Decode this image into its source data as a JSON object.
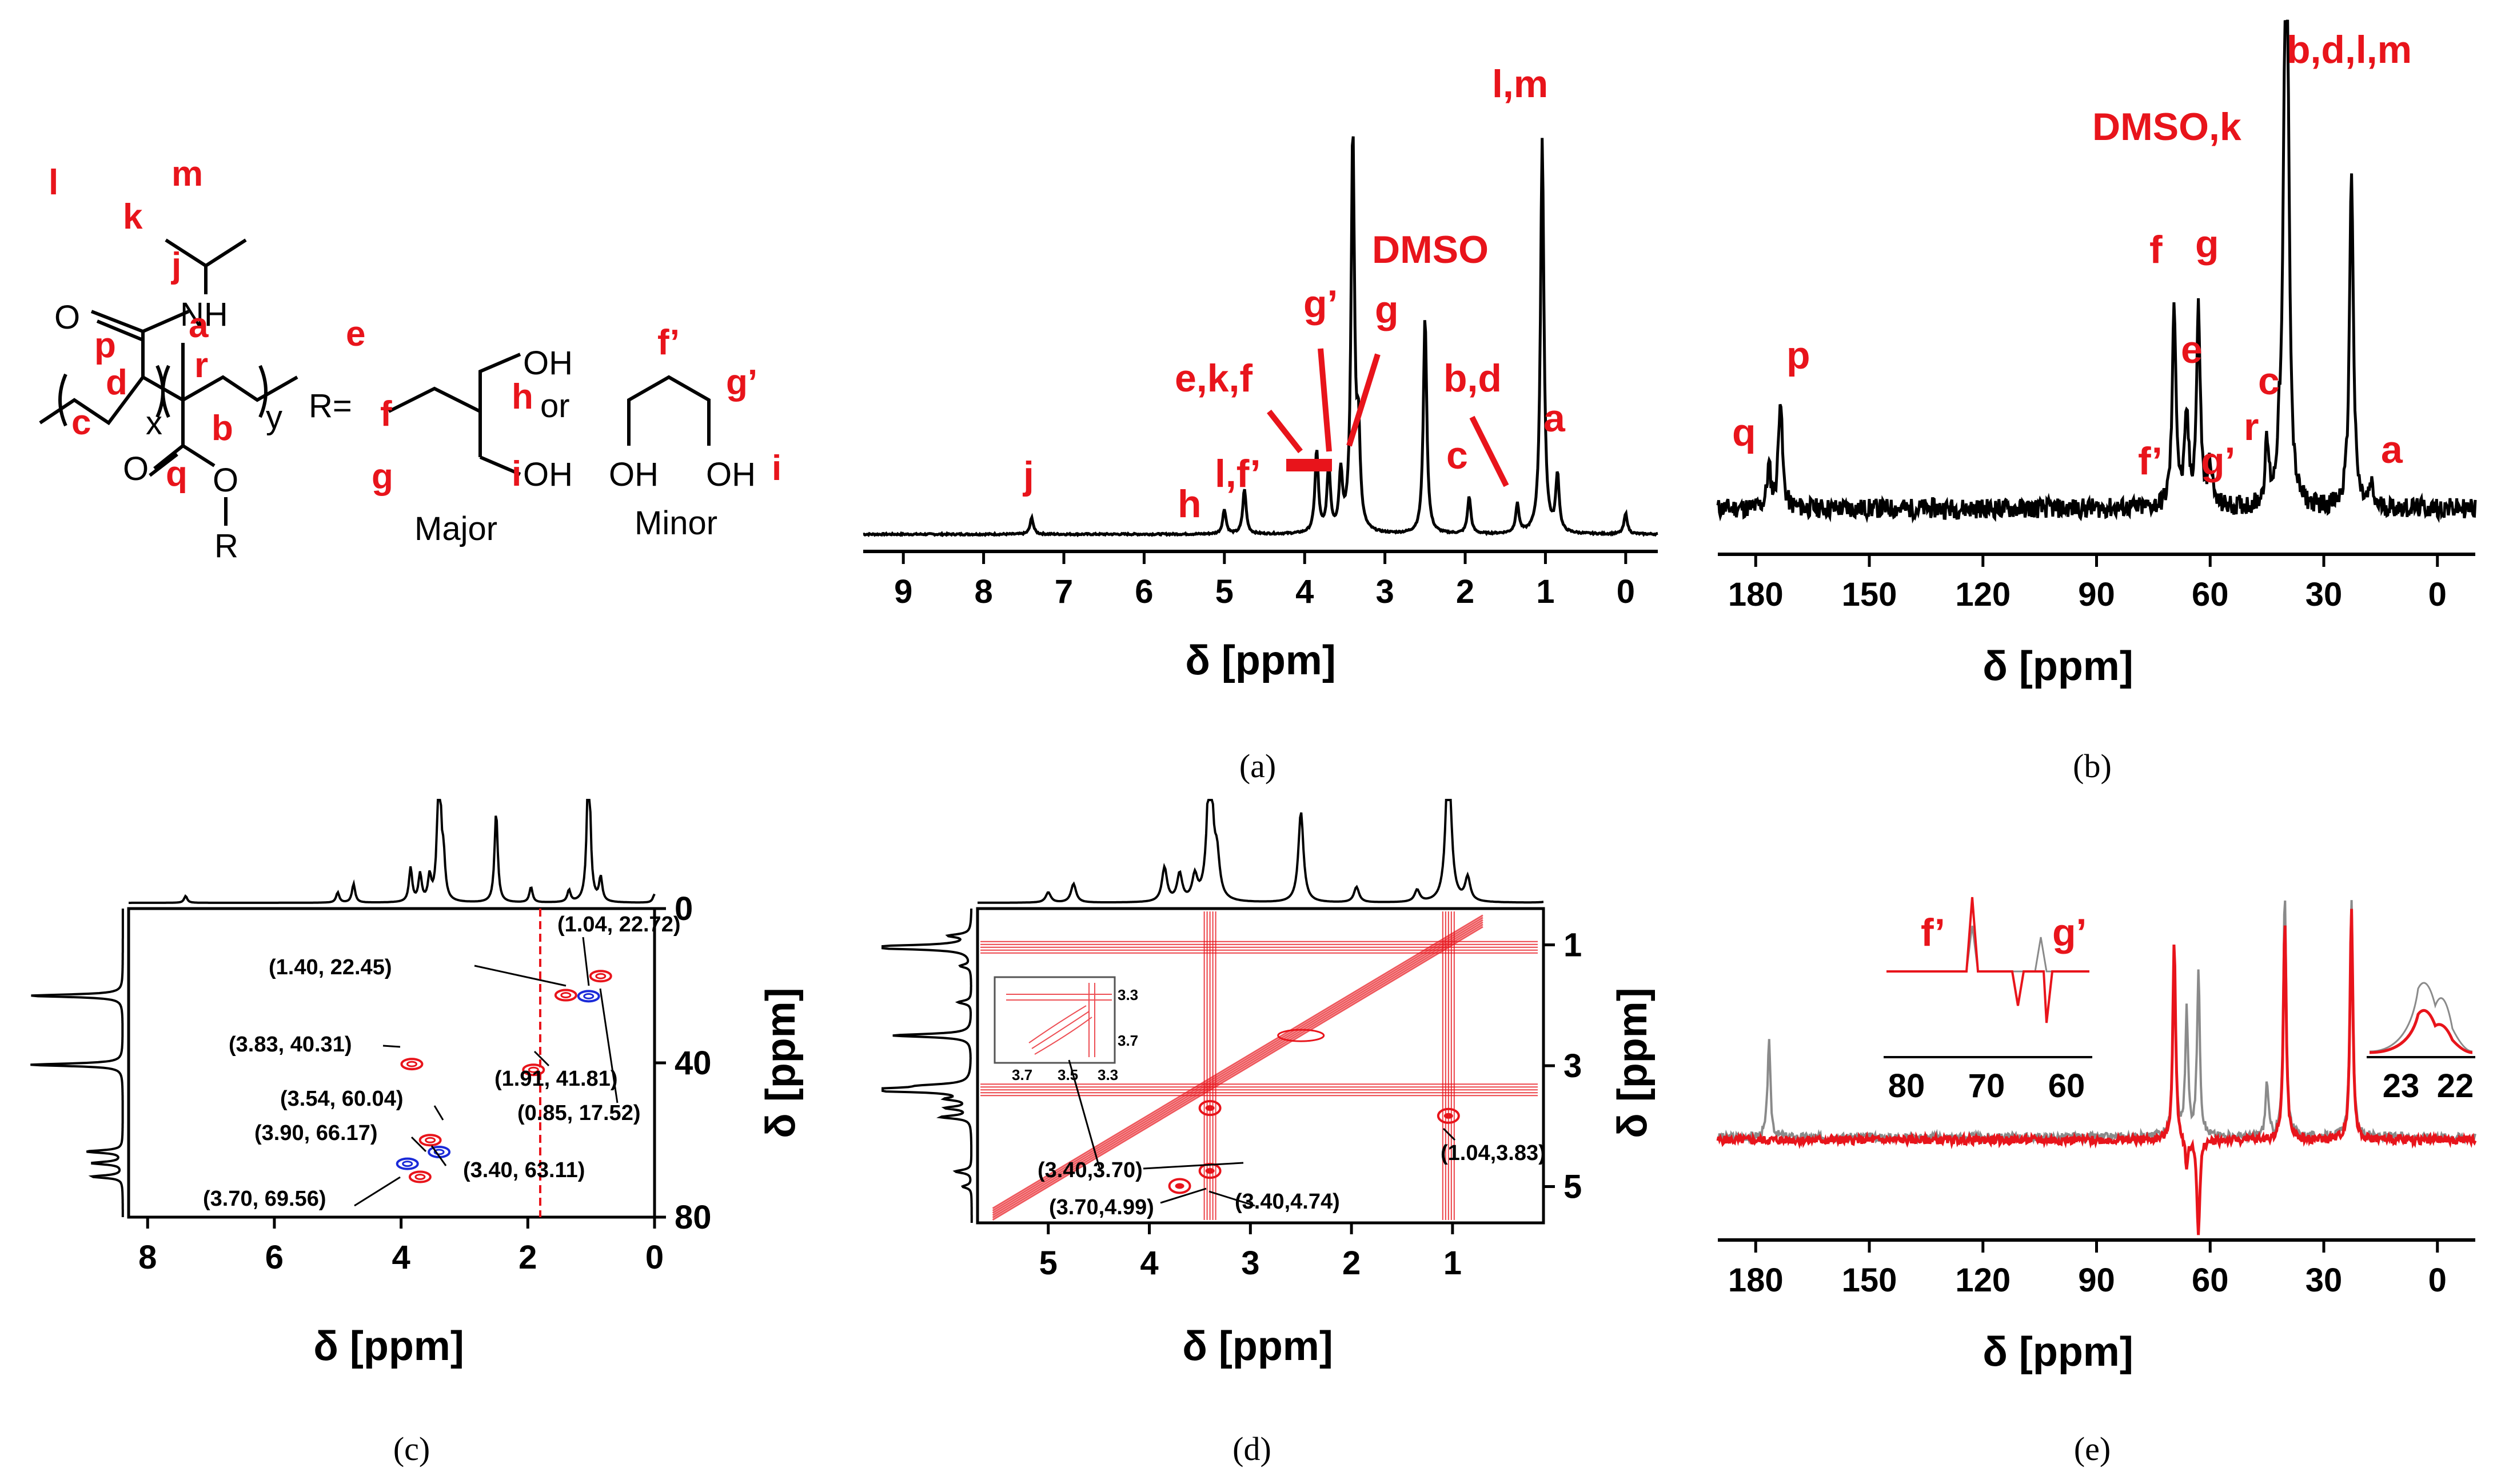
{
  "colors": {
    "label_red": "#e8141b",
    "spectrum_black": "#000000",
    "contour_red": "#e8141b",
    "contour_blue": "#1a2ad8",
    "reference_gray": "#8a8a8a"
  },
  "structure": {
    "letters": [
      "l",
      "m",
      "k",
      "j",
      "a",
      "p",
      "d",
      "r",
      "c",
      "b",
      "q",
      "e",
      "h",
      "f",
      "i",
      "g",
      "f’",
      "g’",
      "i"
    ],
    "atoms": [
      "O",
      "NH",
      "O",
      "O",
      "R",
      "OH",
      "OH",
      "OH",
      "OH"
    ],
    "r_prefix": "R=",
    "or_text": "or",
    "major_label": "Major",
    "minor_label": "Minor",
    "sub_x": "x",
    "sub_y": "y"
  },
  "captions": [
    "(a)",
    "(b)",
    "(c)",
    "(d)",
    "(e)"
  ],
  "chart_data": [
    {
      "panel": "(a)",
      "type": "line",
      "title": "",
      "xlabel": "δ [ppm]",
      "ylabel": "",
      "xlim": [
        9.5,
        -0.4
      ],
      "xticks": [
        9,
        8,
        7,
        6,
        5,
        4,
        3,
        2,
        1,
        0
      ],
      "reversed_x": true,
      "series": [
        {
          "values_ppm_height": [
            [
              7.4,
              0.04
            ],
            [
              5.0,
              0.06
            ],
            [
              4.75,
              0.11
            ],
            [
              3.85,
              0.2
            ],
            [
              3.7,
              0.16
            ],
            [
              3.55,
              0.14
            ],
            [
              3.4,
              0.97
            ],
            [
              3.33,
              0.22
            ],
            [
              2.5,
              0.53
            ],
            [
              1.95,
              0.09
            ],
            [
              1.35,
              0.07
            ],
            [
              1.04,
              0.96
            ],
            [
              0.85,
              0.14
            ],
            [
              0.0,
              0.05
            ]
          ]
        }
      ],
      "peak_labels": [
        "j",
        "h",
        "l,f’",
        "e,k,f",
        "g’",
        "g",
        "DMSO",
        "c",
        "b,d",
        "a",
        "l,m"
      ]
    },
    {
      "panel": "(b)",
      "type": "line",
      "title": "",
      "xlabel": "δ [ppm]",
      "ylabel": "",
      "xlim": [
        190,
        -10
      ],
      "xticks": [
        180,
        150,
        120,
        90,
        60,
        30,
        0
      ],
      "reversed_x": true,
      "series": [
        {
          "values_ppm_height": [
            [
              176.5,
              0.1
            ],
            [
              173.5,
              0.28
            ],
            [
              69.5,
              0.5
            ],
            [
              66.2,
              0.22
            ],
            [
              63.1,
              0.49
            ],
            [
              60.0,
              0.11
            ],
            [
              45.0,
              0.15
            ],
            [
              41.8,
              0.11
            ],
            [
              40.3,
              0.86
            ],
            [
              39.5,
              0.86
            ],
            [
              22.7,
              0.85
            ],
            [
              17.5,
              0.05
            ]
          ]
        }
      ],
      "peak_labels": [
        "q",
        "p",
        "f’",
        "f",
        "e",
        "g’",
        "g",
        "r",
        "c",
        "DMSO,k",
        "b,d,l,m",
        "a"
      ]
    },
    {
      "panel": "(c)",
      "type": "scatter",
      "title": "",
      "xlabel": "δ [ppm]",
      "ylabel": "δ [ppm]",
      "xlim": [
        8.3,
        0
      ],
      "ylim": [
        0,
        80
      ],
      "xticks": [
        8,
        6,
        4,
        2,
        0
      ],
      "yticks": [
        0,
        40,
        80
      ],
      "correlations": [
        {
          "label": "(1.04, 22.72)",
          "x": 1.04,
          "y": 22.72
        },
        {
          "label": "(1.40, 22.45)",
          "x": 1.4,
          "y": 22.45
        },
        {
          "label": "(3.83, 40.31)",
          "x": 3.83,
          "y": 40.31
        },
        {
          "label": "(1.91, 41.81)",
          "x": 1.91,
          "y": 41.81
        },
        {
          "label": "(3.54, 60.04)",
          "x": 3.54,
          "y": 60.04
        },
        {
          "label": "(0.85, 17.52)",
          "x": 0.85,
          "y": 17.52
        },
        {
          "label": "(3.90, 66.17)",
          "x": 3.9,
          "y": 66.17
        },
        {
          "label": "(3.40, 63.11)",
          "x": 3.4,
          "y": 63.11
        },
        {
          "label": "(3.70, 69.56)",
          "x": 3.7,
          "y": 69.56
        }
      ]
    },
    {
      "panel": "(d)",
      "type": "scatter",
      "title": "",
      "xlabel": "δ [ppm]",
      "ylabel": "δ [ppm]",
      "xlim": [
        5.7,
        0.1
      ],
      "ylim": [
        0.4,
        5.6
      ],
      "xticks": [
        5,
        4,
        3,
        2,
        1
      ],
      "yticks": [
        1,
        3,
        5
      ],
      "correlations": [
        {
          "label": "(3.40,3.70)",
          "x": 3.4,
          "y": 3.7
        },
        {
          "label": "(1.04,3.83)",
          "x": 1.04,
          "y": 3.83
        },
        {
          "label": "(3.70,4.99)",
          "x": 3.7,
          "y": 4.99
        },
        {
          "label": "(3.40,4.74)",
          "x": 3.4,
          "y": 4.74
        }
      ],
      "inset": {
        "xticks": [
          "3.7",
          "3.5",
          "3.3"
        ],
        "yticks": [
          "3.3",
          "3.7"
        ]
      }
    },
    {
      "panel": "(e)",
      "type": "line",
      "title": "",
      "xlabel": "δ [ppm]",
      "ylabel": "",
      "xlim": [
        190,
        -10
      ],
      "xticks": [
        180,
        150,
        120,
        90,
        60,
        30,
        0
      ],
      "reversed_x": true,
      "series": [
        {
          "color": "gray",
          "values_ppm_height": [
            [
              176.5,
              0.35
            ],
            [
              69.5,
              0.65
            ],
            [
              66.2,
              0.45
            ],
            [
              63.1,
              0.6
            ],
            [
              45.0,
              0.2
            ],
            [
              40.3,
              0.88
            ],
            [
              22.7,
              0.88
            ]
          ]
        },
        {
          "color": "red",
          "values_ppm_height": [
            [
              69.5,
              0.72
            ],
            [
              63.1,
              -0.35
            ],
            [
              66.2,
              -0.1
            ],
            [
              40.3,
              0.8
            ],
            [
              22.7,
              0.85
            ]
          ]
        }
      ],
      "inset1": {
        "xticks": [
          80,
          70,
          60
        ],
        "labels": [
          "f’",
          "g’"
        ]
      },
      "inset2": {
        "xticks": [
          23,
          22
        ]
      }
    }
  ]
}
